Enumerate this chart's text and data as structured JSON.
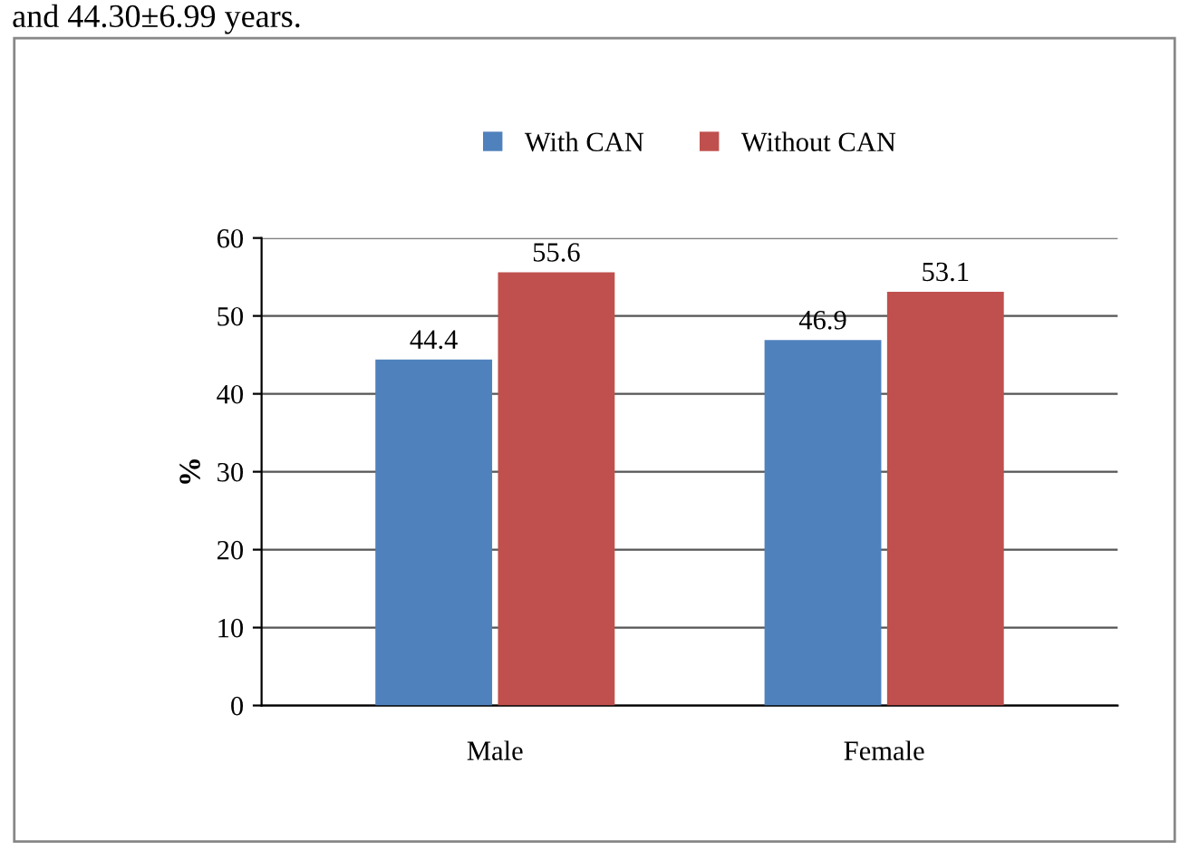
{
  "chart_data": {
    "type": "bar",
    "categories": [
      "Male",
      "Female"
    ],
    "series": [
      {
        "name": "With CAN",
        "color": "#4f81bd",
        "values": [
          44.4,
          46.9
        ]
      },
      {
        "name": "Without CAN",
        "color": "#c0504d",
        "values": [
          55.6,
          53.1
        ]
      }
    ],
    "ylabel": "%",
    "ylim": [
      0,
      60
    ],
    "yticks": [
      0,
      10,
      20,
      30,
      40,
      50,
      60
    ],
    "grid": "y",
    "legend": "top",
    "data_labels": true,
    "annotations": [
      "and 44.30±6.99 years."
    ]
  }
}
